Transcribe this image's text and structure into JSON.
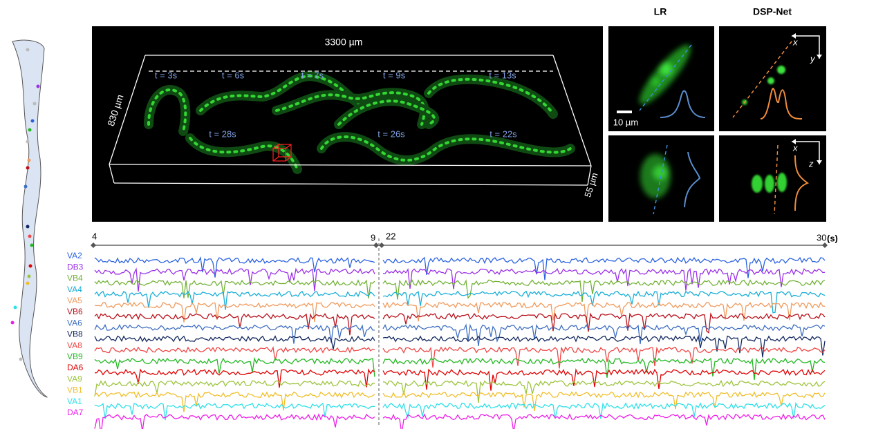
{
  "panels": {
    "lr_title": "LR",
    "dsp_title": "DSP-Net"
  },
  "volume": {
    "width_label": "3300 µm",
    "height_label": "830 µm",
    "depth_label": "55 µm",
    "times": [
      "t = 3s",
      "t = 6s",
      "t = 7s",
      "t = 9s",
      "t = 13s",
      "t = 28s",
      "t = 26s",
      "t = 22s"
    ]
  },
  "insets": {
    "scale_bar": "10 µm",
    "axes": [
      "x",
      "y",
      "x",
      "z"
    ]
  },
  "timeline": {
    "segments": [
      {
        "start": 4,
        "end": 9
      },
      {
        "start": 22,
        "end": 30
      }
    ],
    "unit": "(s)"
  },
  "neurons": [
    {
      "name": "VA2",
      "color": "#2a62e0"
    },
    {
      "name": "DB3",
      "color": "#9b30e6"
    },
    {
      "name": "VB4",
      "color": "#72b236"
    },
    {
      "name": "VA4",
      "color": "#1aaed6"
    },
    {
      "name": "VA5",
      "color": "#f09a5c"
    },
    {
      "name": "VB6",
      "color": "#b8101a"
    },
    {
      "name": "VA6",
      "color": "#3f6fc2"
    },
    {
      "name": "VB8",
      "color": "#13285e"
    },
    {
      "name": "VA8",
      "color": "#ef4646"
    },
    {
      "name": "VB9",
      "color": "#22b822"
    },
    {
      "name": "DA6",
      "color": "#e00000"
    },
    {
      "name": "VA9",
      "color": "#9cc43e"
    },
    {
      "name": "VB1",
      "color": "#f0be2a"
    },
    {
      "name": "VA1",
      "color": "#2ee0e8"
    },
    {
      "name": "DA7",
      "color": "#ee1ee8"
    }
  ]
}
